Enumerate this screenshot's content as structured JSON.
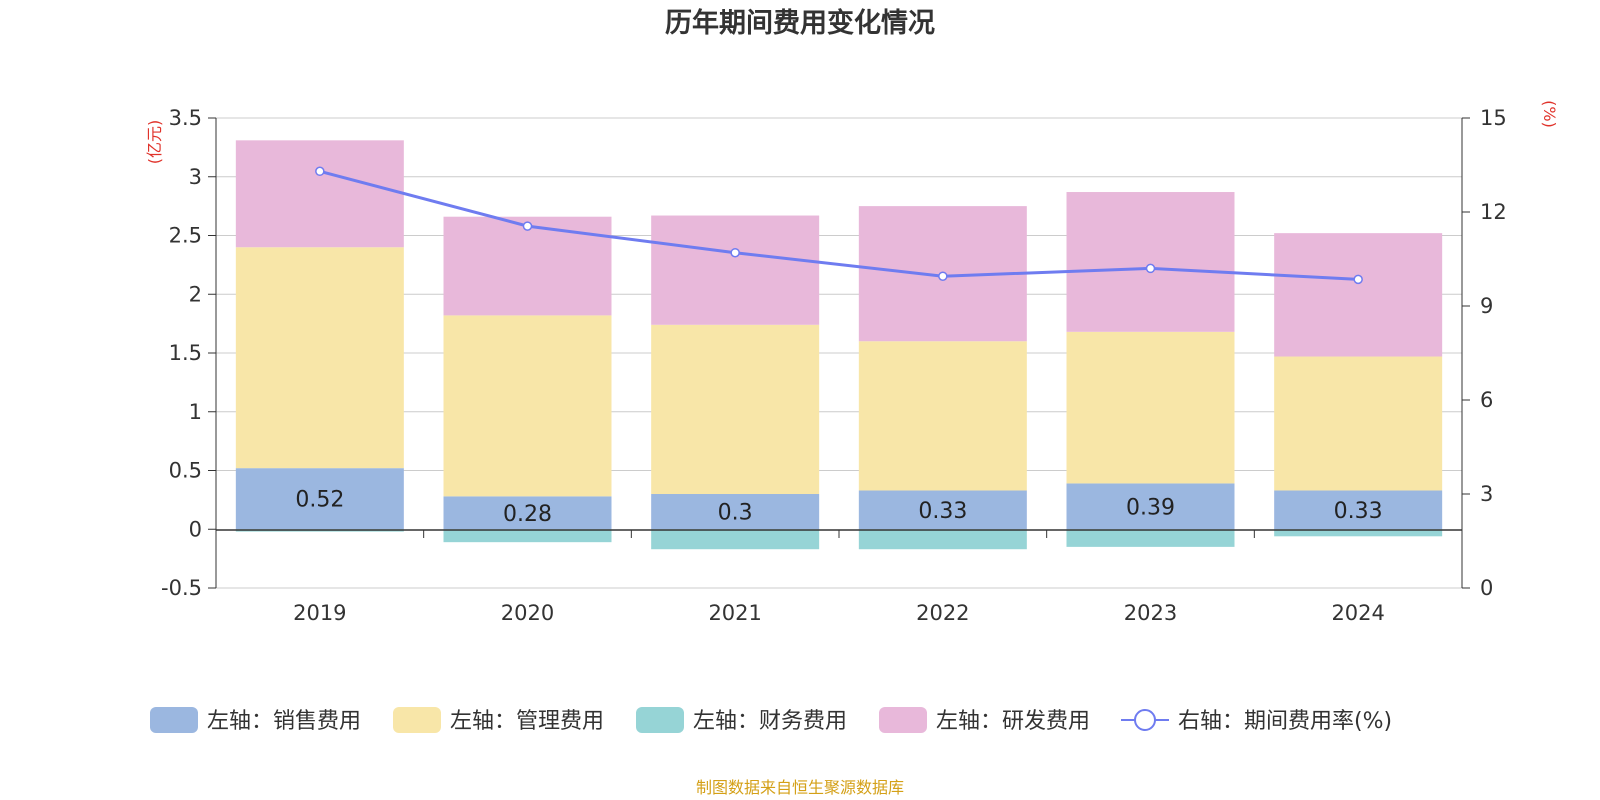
{
  "chart_data": {
    "type": "bar",
    "title": "历年期间费用变化情况",
    "categories": [
      "2019",
      "2020",
      "2021",
      "2022",
      "2023",
      "2024"
    ],
    "left_axis": {
      "unit": "(亿元)",
      "ylim": [
        -0.5,
        3.5
      ],
      "ticks": [
        -0.5,
        0,
        0.5,
        1,
        1.5,
        2,
        2.5,
        3,
        3.5
      ],
      "tick_labels": [
        "-0.5",
        "0",
        "0.5",
        "1",
        "1.5",
        "2",
        "2.5",
        "3",
        "3.5"
      ]
    },
    "right_axis": {
      "unit": "(%)",
      "ylim": [
        0,
        15
      ],
      "ticks": [
        0,
        3,
        6,
        9,
        12,
        15
      ],
      "tick_labels": [
        "0",
        "3",
        "6",
        "9",
        "12",
        "15"
      ]
    },
    "series": [
      {
        "name": "左轴：销售费用",
        "kind": "bar",
        "axis": "left",
        "color": "#9bb7e0",
        "values": [
          0.52,
          0.28,
          0.3,
          0.33,
          0.39,
          0.33
        ],
        "labels": [
          "0.52",
          "0.28",
          "0.3",
          "0.33",
          "0.39",
          "0.33"
        ]
      },
      {
        "name": "左轴：管理费用",
        "kind": "bar",
        "axis": "left",
        "color": "#f8e6a8",
        "values": [
          1.88,
          1.54,
          1.44,
          1.27,
          1.29,
          1.14
        ]
      },
      {
        "name": "左轴：财务费用",
        "kind": "bar",
        "axis": "left",
        "color": "#96d4d6",
        "values": [
          -0.02,
          -0.11,
          -0.17,
          -0.17,
          -0.15,
          -0.06
        ]
      },
      {
        "name": "左轴：研发费用",
        "kind": "bar",
        "axis": "left",
        "color": "#e8b8da",
        "values": [
          0.91,
          0.84,
          0.93,
          1.15,
          1.19,
          1.05
        ]
      },
      {
        "name": "右轴：期间费用率(%)",
        "kind": "line",
        "axis": "right",
        "color": "#6f7cf0",
        "values": [
          13.3,
          11.55,
          10.7,
          9.95,
          10.2,
          9.85
        ]
      }
    ],
    "legend_position": "bottom",
    "grid": true
  },
  "source_note": "制图数据来自恒生聚源数据库",
  "colors": {
    "unit_label": "#e0332b",
    "source_note": "#d4a017",
    "grid": "#cccccc",
    "axis": "#333333"
  }
}
